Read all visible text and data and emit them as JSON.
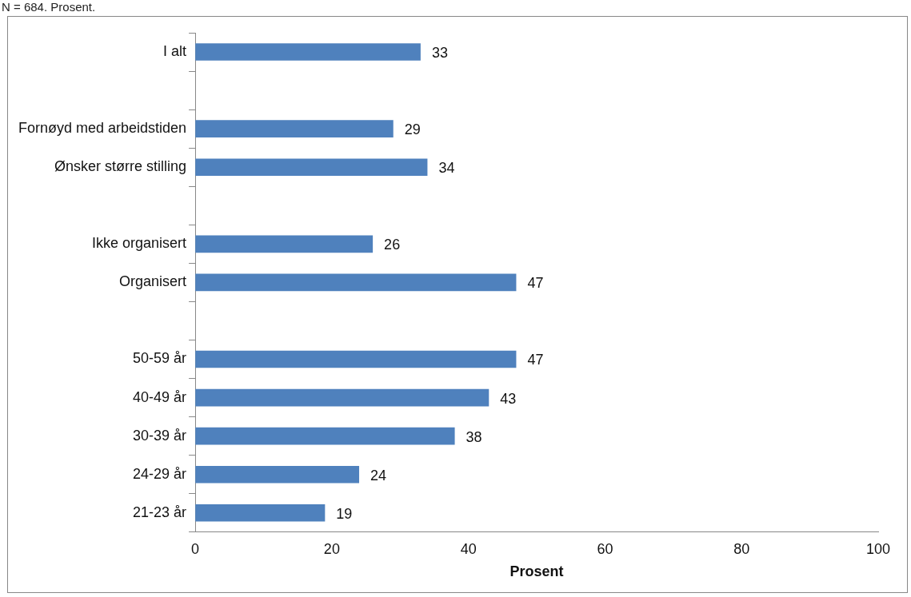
{
  "chart_data": {
    "type": "bar",
    "orientation": "horizontal",
    "annotations": [
      "N = 684. Prosent."
    ],
    "xlabel": "Prosent",
    "categories": [
      "I alt",
      null,
      "Fornøyd med arbeidstiden",
      "Ønsker større stilling",
      null,
      "Ikke organisert",
      "Organisert",
      null,
      "50-59 år",
      "40-49 år",
      "30-39 år",
      "24-29 år",
      "21-23 år"
    ],
    "values": [
      33,
      null,
      29,
      34,
      null,
      26,
      47,
      null,
      47,
      43,
      38,
      24,
      19
    ],
    "color": "#4f81bd",
    "data_labels": true,
    "xlim": [
      0,
      100
    ],
    "xticks": [
      0,
      20,
      40,
      60,
      80,
      100
    ],
    "grid": false,
    "legend": false
  }
}
